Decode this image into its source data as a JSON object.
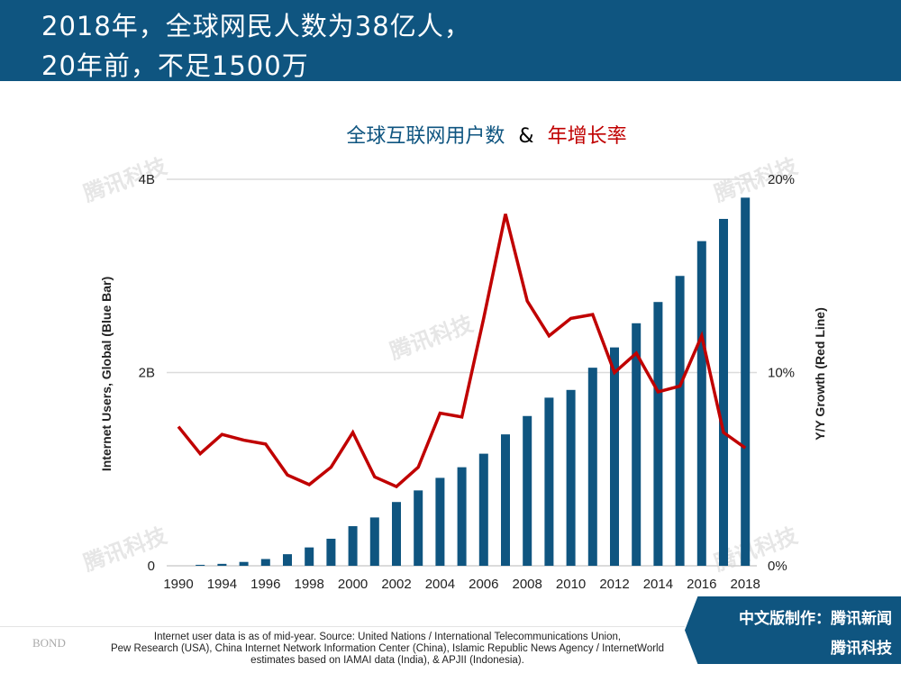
{
  "header": {
    "line1": "2018年，全球网民人数为38亿人，",
    "line2": "20年前，不足1500万"
  },
  "chart_title": {
    "part1": "全球互联网用户数",
    "amp": "&",
    "part2": "年增长率"
  },
  "watermark": "腾讯科技",
  "footer": {
    "bond": "BOND",
    "note_lines": [
      "Internet user data is as of mid-year.  Source: United Nations / International Telecommunications Union,",
      "Pew Research (USA), China Internet Network Information Center (China), Islamic Republic News Agency / InternetWorld",
      "estimates based on IAMAI data (India), & APJII (Indonesia)."
    ],
    "badge_line1": "中文版制作：腾讯新闻",
    "badge_line2": "腾讯科技"
  },
  "colors": {
    "header": "#0f5580",
    "bar": "#0f5580",
    "line": "#c00000",
    "title_blue": "#0f5580",
    "title_red": "#c00000"
  },
  "chart_data": {
    "type": "bar+line",
    "ylabel_left": "Internet Users, Global (Blue Bar)",
    "ylabel_right": "Y/Y Growth (Red Line)",
    "left_ticks": [
      "0",
      "2B",
      "4B"
    ],
    "left_ylim": [
      0,
      4
    ],
    "right_ticks": [
      "0%",
      "10%",
      "20%"
    ],
    "right_ylim": [
      0,
      20
    ],
    "x_tick_labels": [
      "1990",
      "1994",
      "1996",
      "1998",
      "2000",
      "2002",
      "2004",
      "2006",
      "2008",
      "2010",
      "2012",
      "2014",
      "2016",
      "2018"
    ],
    "grid": true,
    "categories": [
      "1990",
      "1993",
      "1994",
      "1995",
      "1996",
      "1997",
      "1998",
      "1999",
      "2000",
      "2001",
      "2002",
      "2003",
      "2004",
      "2005",
      "2006",
      "2007",
      "2008",
      "2009",
      "2010",
      "2011",
      "2012",
      "2013",
      "2014",
      "2015",
      "2016",
      "2017",
      "2018"
    ],
    "series": [
      {
        "name": "Internet Users, Global (Blue Bar)",
        "type": "bar",
        "unit": "B",
        "values": [
          0,
          0.01,
          0.02,
          0.04,
          0.07,
          0.12,
          0.19,
          0.28,
          0.41,
          0.5,
          0.66,
          0.78,
          0.91,
          1.02,
          1.16,
          1.36,
          1.55,
          1.74,
          1.82,
          2.05,
          2.26,
          2.51,
          2.73,
          3.0,
          3.36,
          3.59,
          3.81
        ]
      },
      {
        "name": "Y/Y Growth (Red Line)",
        "type": "line",
        "unit": "%",
        "values": [
          7.2,
          5.8,
          6.8,
          6.5,
          6.3,
          4.7,
          4.2,
          5.1,
          6.9,
          4.6,
          4.1,
          5.1,
          7.9,
          7.7,
          12.8,
          18.2,
          13.7,
          11.9,
          12.8,
          13.0,
          10.0,
          11.0,
          9.0,
          9.3,
          11.9,
          6.9,
          6.1
        ]
      }
    ]
  }
}
